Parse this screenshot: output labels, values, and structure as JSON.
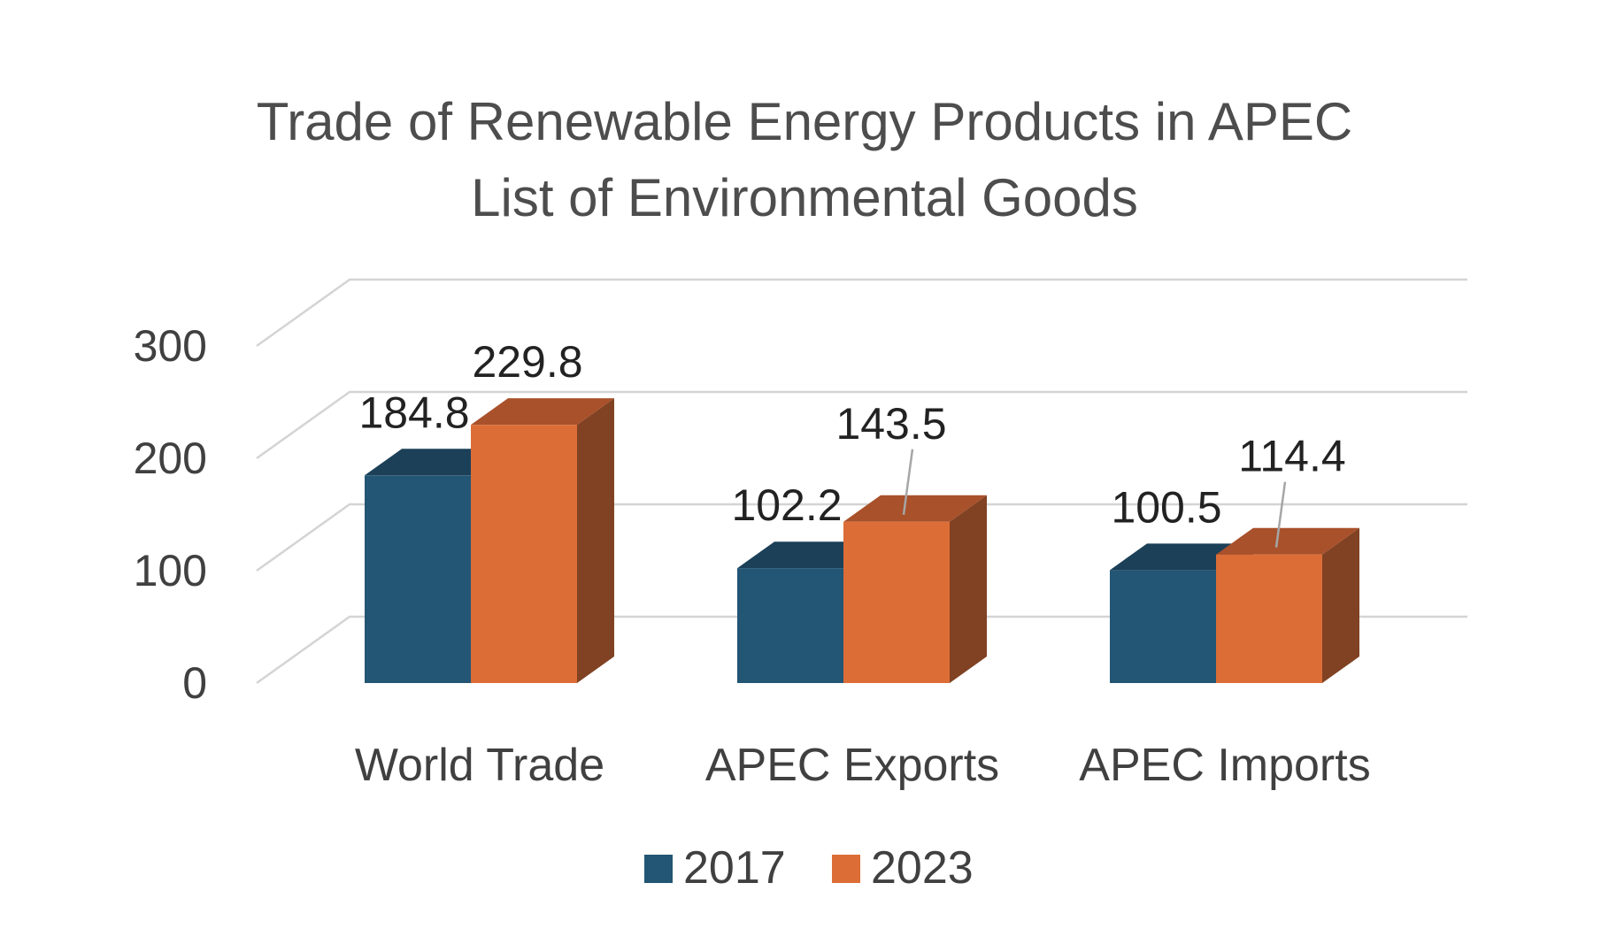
{
  "chart_data": {
    "type": "bar",
    "style": "3d-clustered-column",
    "title_lines": [
      "Trade of Renewable Energy Products in APEC",
      "List of Environmental Goods"
    ],
    "categories": [
      "World Trade",
      "APEC Exports",
      "APEC Imports"
    ],
    "series": [
      {
        "name": "2017",
        "values": [
          184.8,
          102.2,
          100.5
        ],
        "value_labels": [
          "184.8",
          "102.2",
          "100.5"
        ],
        "color_front": "#235574",
        "color_top": "#1b4058",
        "color_side": "#173a50"
      },
      {
        "name": "2023",
        "values": [
          229.8,
          143.5,
          114.4
        ],
        "value_labels": [
          "229.8",
          "143.5",
          "114.4"
        ],
        "color_front": "#dc6d37",
        "color_top": "#a9512b",
        "color_side": "#804223"
      }
    ],
    "y_ticks": [
      "0",
      "100",
      "200",
      "300"
    ],
    "ylim": [
      0,
      300
    ],
    "grid": true,
    "legend_position": "bottom",
    "xlabel": "",
    "ylabel": ""
  }
}
